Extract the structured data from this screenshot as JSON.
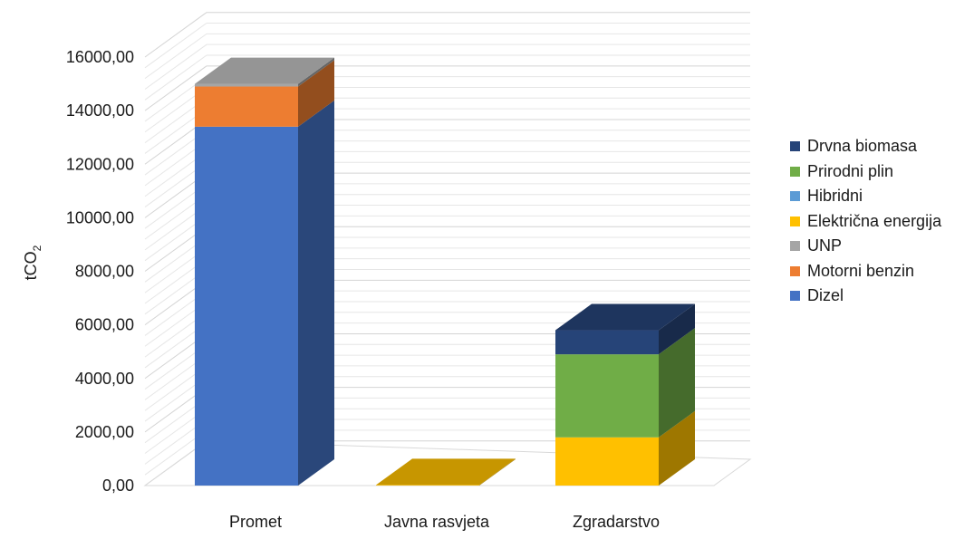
{
  "chart_data": {
    "type": "bar",
    "stacked": true,
    "three_d": true,
    "categories": [
      "Promet",
      "Javna rasvjeta",
      "Zgradarstvo"
    ],
    "ylabel": "tCO",
    "ylabel_subscript": "2",
    "ylim": [
      0,
      16000
    ],
    "ytick_step": 2000,
    "yticks": [
      "0,00",
      "2000,00",
      "4000,00",
      "6000,00",
      "8000,00",
      "10000,00",
      "12000,00",
      "14000,00",
      "16000,00"
    ],
    "grid": true,
    "legend_position": "right",
    "series": [
      {
        "name": "Dizel",
        "color": "#4472C4",
        "values": [
          13400,
          0,
          0
        ]
      },
      {
        "name": "Motorni benzin",
        "color": "#ED7D31",
        "values": [
          1500,
          0,
          0
        ]
      },
      {
        "name": "UNP",
        "color": "#A5A5A5",
        "values": [
          100,
          0,
          0
        ]
      },
      {
        "name": "Električna energija",
        "color": "#FFC000",
        "values": [
          0,
          20,
          1800
        ]
      },
      {
        "name": "Hibridni",
        "color": "#5B9BD5",
        "values": [
          0,
          0,
          0
        ]
      },
      {
        "name": "Prirodni plin",
        "color": "#70AD47",
        "values": [
          0,
          0,
          3100
        ]
      },
      {
        "name": "Drvna biomasa",
        "color": "#264478",
        "values": [
          0,
          0,
          900
        ]
      }
    ]
  }
}
